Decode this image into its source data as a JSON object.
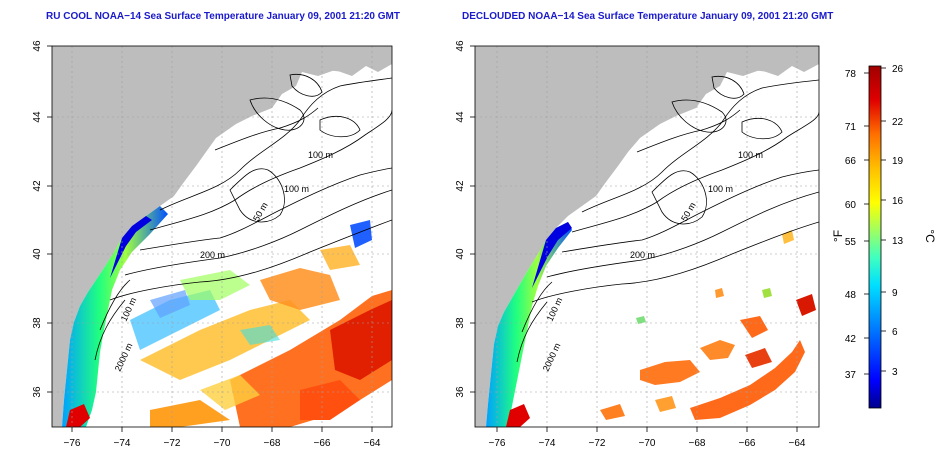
{
  "panels": [
    {
      "title": "RU COOL NOAA−14 Sea Surface Temperature January 09, 2001 21:20 GMT",
      "x_ticks": [
        "−76",
        "−74",
        "−72",
        "−70",
        "−68",
        "−66",
        "−64"
      ],
      "y_ticks": [
        "46",
        "44",
        "42",
        "40",
        "38",
        "36"
      ],
      "contour_labels": [
        "100 m",
        "100 m",
        "50 m",
        "200 m",
        "100 m",
        "2000 m"
      ]
    },
    {
      "title": "DECLOUDED NOAA−14 Sea Surface Temperature January 09, 2001 21:20 GMT",
      "x_ticks": [
        "−76",
        "−74",
        "−72",
        "−70",
        "−68",
        "−66",
        "−64"
      ],
      "y_ticks": [
        "46",
        "44",
        "42",
        "40",
        "38",
        "36"
      ],
      "contour_labels": [
        "100 m",
        "100 m",
        "50 m",
        "200 m",
        "100 m",
        "2000 m"
      ]
    }
  ],
  "colorbar": {
    "fahrenheit_unit": "°F",
    "celsius_unit": "°C",
    "fahrenheit_ticks": [
      "78",
      "71",
      "66",
      "60",
      "55",
      "48",
      "42",
      "37"
    ],
    "celsius_ticks": [
      "26",
      "22",
      "19",
      "16",
      "13",
      "9",
      "6",
      "3"
    ],
    "colors": [
      "#00008b",
      "#0000ff",
      "#0050ff",
      "#00a0ff",
      "#00e0ff",
      "#40ffc0",
      "#80ff80",
      "#c0ff40",
      "#ffff00",
      "#ffc000",
      "#ff8000",
      "#ff4000",
      "#e00000",
      "#a00000"
    ]
  },
  "map": {
    "land_color": "#bdbdbd",
    "ocean_color": "#ffffff",
    "contour_color": "#000000",
    "grid_color": "#a0a0a0"
  }
}
